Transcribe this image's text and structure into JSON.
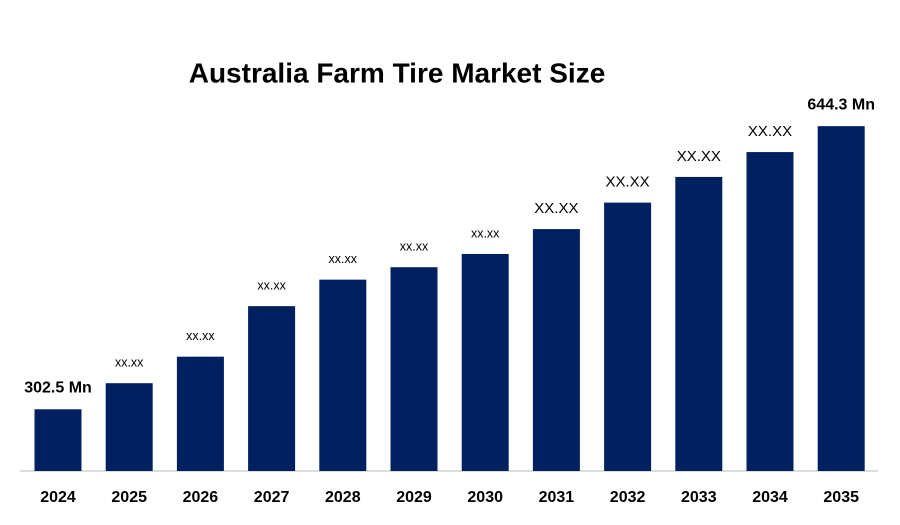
{
  "chart_data": {
    "type": "bar",
    "title": "Australia Farm Tire Market Size",
    "categories": [
      "2024",
      "2025",
      "2026",
      "2027",
      "2028",
      "2029",
      "2030",
      "2031",
      "2032",
      "2033",
      "2034",
      "2035"
    ],
    "values": [
      302.5,
      334,
      366,
      427,
      459,
      474,
      490,
      520,
      552,
      583,
      613,
      644.3
    ],
    "value_labels": [
      "302.5 Mn",
      "xx.xx",
      "xx.xx",
      "xx.xx",
      "xx.xx",
      "xx.xx",
      "xx.xx",
      "XX.XX",
      "XX.XX",
      "XX.XX",
      "XX.XX",
      "644.3 Mn"
    ],
    "color": "#002060",
    "ylim": [
      228,
      700
    ]
  }
}
